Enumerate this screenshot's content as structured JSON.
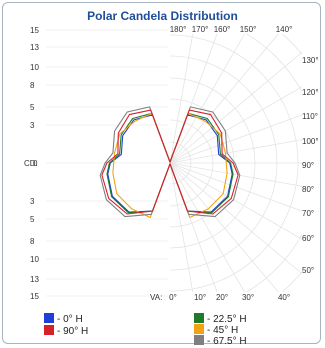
{
  "chart_data": {
    "type": "line",
    "title": "Polar Candela Distribution",
    "cd_axis_label": "CD:",
    "cd_ticks_upper": [
      "15",
      "13",
      "10",
      "8",
      "5",
      "3"
    ],
    "cd_tick_center": "0",
    "cd_ticks_lower": [
      "3",
      "5",
      "8",
      "10",
      "13",
      "15"
    ],
    "top_angle_labels": [
      "180°",
      "170°",
      "160°",
      "150°",
      "140°"
    ],
    "right_angle_labels": [
      "130°",
      "120°",
      "110°",
      "100°",
      "90°",
      "80°",
      "70°",
      "60°",
      "50°"
    ],
    "va_label": "VA:",
    "bottom_angle_labels": [
      "0°",
      "10°",
      "20°",
      "30°",
      "40°"
    ],
    "angles": [
      0,
      20,
      40,
      60,
      80,
      90,
      100,
      120,
      140,
      160,
      180
    ],
    "series": [
      {
        "name": "- 0° H",
        "color": "#1f3fd6",
        "values": [
          0.1,
          6.0,
          7.5,
          7.8,
          7.4,
          7.0,
          5.8,
          6.4,
          6.6,
          6.0,
          0.1
        ]
      },
      {
        "name": "- 22.5° H",
        "color": "#1f7a2a",
        "values": [
          0.1,
          6.0,
          7.6,
          7.9,
          7.5,
          7.1,
          6.0,
          6.6,
          6.8,
          6.2,
          0.1
        ]
      },
      {
        "name": "- 45° H",
        "color": "#f2a314",
        "values": [
          0.1,
          6.8,
          7.0,
          7.2,
          6.8,
          6.6,
          6.6,
          6.8,
          6.4,
          6.2,
          0.1
        ]
      },
      {
        "name": "- 67.5° H",
        "color": "#7f7f7f",
        "values": [
          0.1,
          6.4,
          8.2,
          8.6,
          8.3,
          7.6,
          6.8,
          7.5,
          7.8,
          7.0,
          0.1
        ]
      },
      {
        "name": "- 90° H",
        "color": "#d6202a",
        "values": [
          0.1,
          6.0,
          7.8,
          8.3,
          8.1,
          7.4,
          6.2,
          7.0,
          7.4,
          6.6,
          0.1
        ]
      }
    ],
    "legend_order": [
      0,
      4,
      1,
      2,
      3
    ],
    "rmax": 15,
    "grid": true,
    "legend_placement": "bottom"
  }
}
